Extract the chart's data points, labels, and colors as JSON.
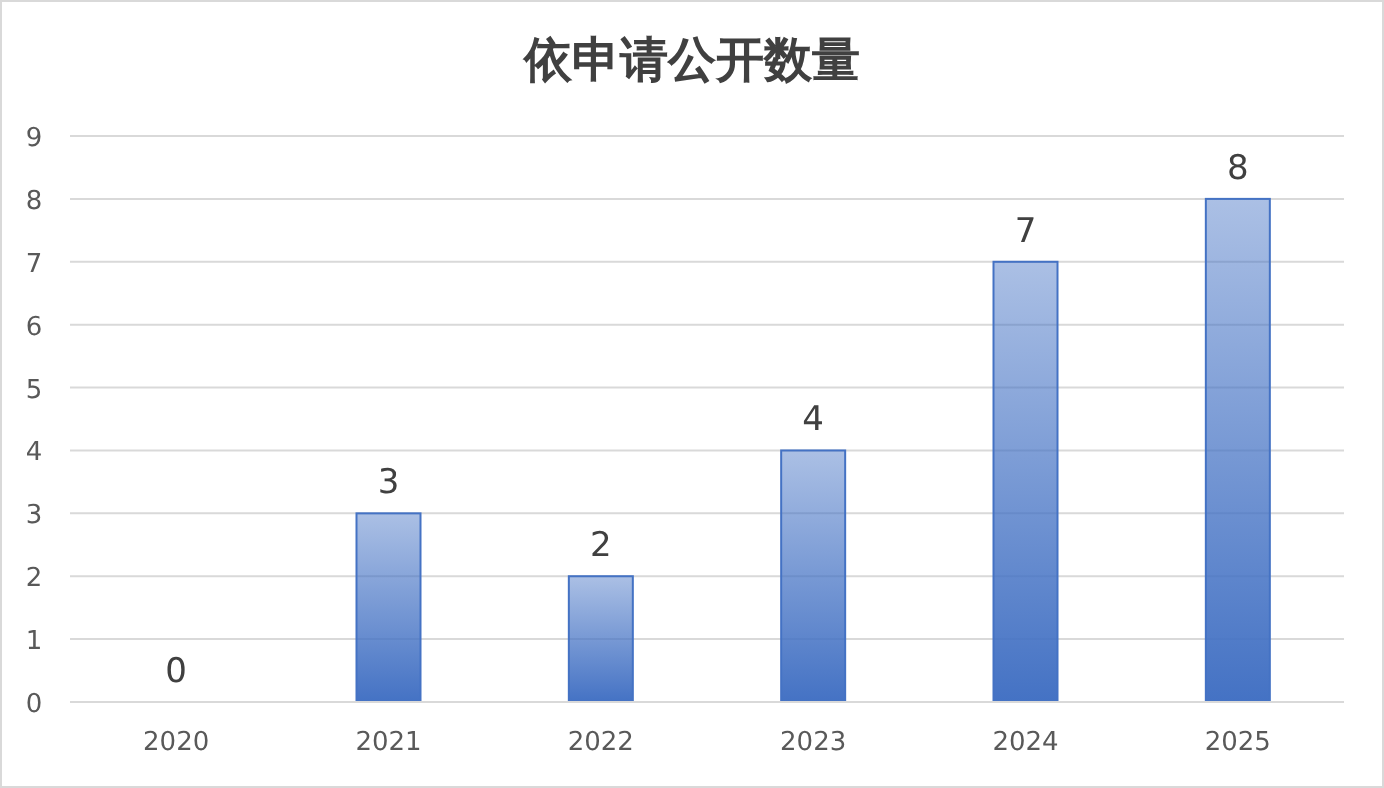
{
  "chart_data": {
    "type": "bar",
    "title": "依申请公开数量",
    "categories": [
      "2020",
      "2021",
      "2022",
      "2023",
      "2024",
      "2025"
    ],
    "values": [
      0,
      3,
      2,
      4,
      7,
      8
    ],
    "color": "#4472c4",
    "ylim": [
      0,
      9
    ],
    "yticks": [
      0,
      1,
      2,
      3,
      4,
      5,
      6,
      7,
      8,
      9
    ],
    "grid": "y",
    "data_labels": true
  }
}
